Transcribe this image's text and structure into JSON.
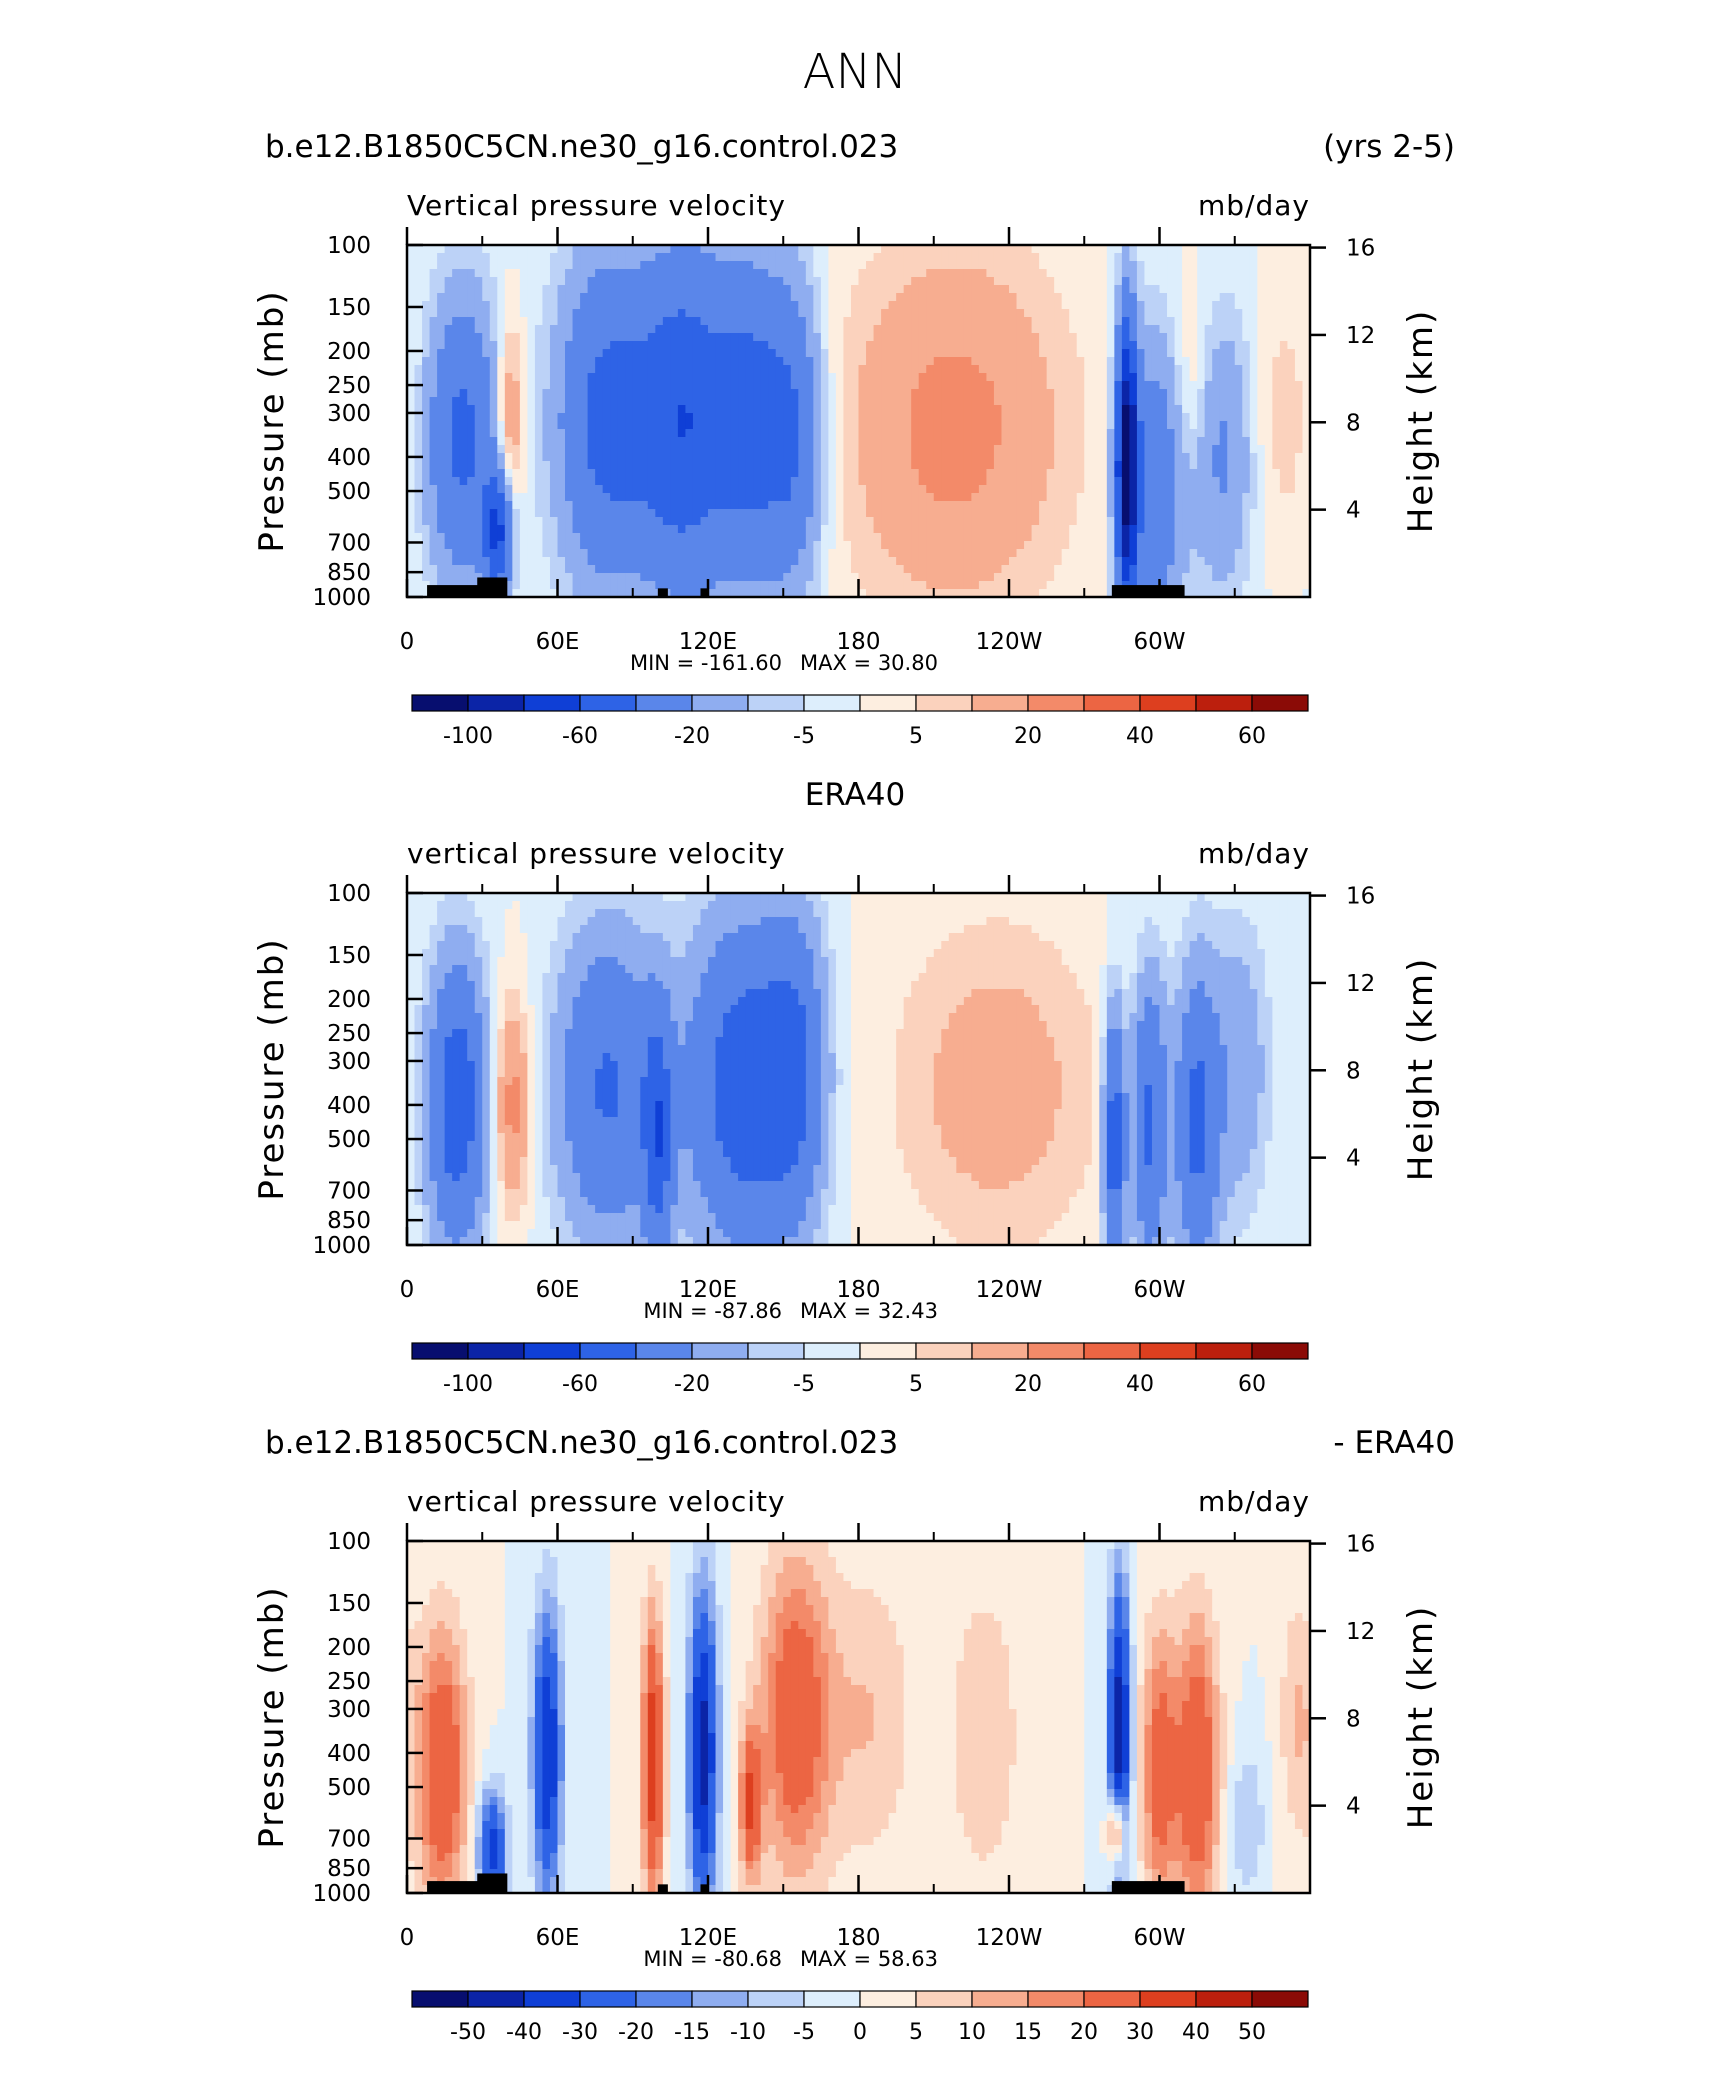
{
  "page": {
    "title": "ANN"
  },
  "chart_data": [
    {
      "type": "heatmap",
      "case_title": "b.e12.B1850C5CN.ne30_g16.control.023",
      "right_title": "(yrs 2-5)",
      "center_title": "",
      "left_string": "Vertical pressure velocity",
      "units": "mb/day",
      "ylabel": "Pressure (mb)",
      "y2label": "Height (km)",
      "x_ticks": [
        "0",
        "60E",
        "120E",
        "180",
        "120W",
        "60W"
      ],
      "y_ticks": [
        "100",
        "150",
        "200",
        "250",
        "300",
        "400",
        "500",
        "700",
        "850",
        "1000"
      ],
      "y2_ticks": [
        "16",
        "12",
        "8",
        "4"
      ],
      "ylim": [
        1000,
        100
      ],
      "xlim": [
        0,
        360
      ],
      "min_label": "MIN = -161.60",
      "max_label": "MAX = 30.80",
      "min": -161.6,
      "max": 30.8,
      "colorbar_labels": [
        "-100",
        "-60",
        "-20",
        "-5",
        "5",
        "20",
        "40",
        "60"
      ],
      "colorbar_colors": [
        "#070e6f",
        "#0b24a7",
        "#0f3fd6",
        "#2e63e6",
        "#5a86ea",
        "#8fadf0",
        "#bcd2f7",
        "#ddeefc",
        "#fdeee0",
        "#fbd2bd",
        "#f7ad90",
        "#f38a69",
        "#ec6543",
        "#dd3f1f",
        "#bc1f0d",
        "#8b0b06"
      ],
      "topography": true
    },
    {
      "type": "heatmap",
      "case_title": "",
      "right_title": "",
      "center_title": "ERA40",
      "left_string": "vertical pressure velocity",
      "units": "mb/day",
      "ylabel": "Pressure (mb)",
      "y2label": "Height (km)",
      "x_ticks": [
        "0",
        "60E",
        "120E",
        "180",
        "120W",
        "60W"
      ],
      "y_ticks": [
        "100",
        "150",
        "200",
        "250",
        "300",
        "400",
        "500",
        "700",
        "850",
        "1000"
      ],
      "y2_ticks": [
        "16",
        "12",
        "8",
        "4"
      ],
      "ylim": [
        1000,
        100
      ],
      "xlim": [
        0,
        360
      ],
      "min_label": "MIN = -87.86",
      "max_label": "MAX = 32.43",
      "min": -87.86,
      "max": 32.43,
      "colorbar_labels": [
        "-100",
        "-60",
        "-20",
        "-5",
        "5",
        "20",
        "40",
        "60"
      ],
      "colorbar_colors": [
        "#070e6f",
        "#0b24a7",
        "#0f3fd6",
        "#2e63e6",
        "#5a86ea",
        "#8fadf0",
        "#bcd2f7",
        "#ddeefc",
        "#fdeee0",
        "#fbd2bd",
        "#f7ad90",
        "#f38a69",
        "#ec6543",
        "#dd3f1f",
        "#bc1f0d",
        "#8b0b06"
      ],
      "topography": false
    },
    {
      "type": "heatmap",
      "case_title": "b.e12.B1850C5CN.ne30_g16.control.023",
      "right_title": "- ERA40",
      "center_title": "",
      "left_string": "vertical pressure velocity",
      "units": "mb/day",
      "ylabel": "Pressure (mb)",
      "y2label": "Height (km)",
      "x_ticks": [
        "0",
        "60E",
        "120E",
        "180",
        "120W",
        "60W"
      ],
      "y_ticks": [
        "100",
        "150",
        "200",
        "250",
        "300",
        "400",
        "500",
        "700",
        "850",
        "1000"
      ],
      "y2_ticks": [
        "16",
        "12",
        "8",
        "4"
      ],
      "ylim": [
        1000,
        100
      ],
      "xlim": [
        0,
        360
      ],
      "min_label": "MIN = -80.68",
      "max_label": "MAX = 58.63",
      "min": -80.68,
      "max": 58.63,
      "colorbar_labels": [
        "-50",
        "-40",
        "-30",
        "-20",
        "-15",
        "-10",
        "-5",
        "0",
        "5",
        "10",
        "15",
        "20",
        "30",
        "40",
        "50"
      ],
      "colorbar_colors": [
        "#070e6f",
        "#0b24a7",
        "#0f3fd6",
        "#2e63e6",
        "#5a86ea",
        "#8fadf0",
        "#bcd2f7",
        "#ddeefc",
        "#fdeee0",
        "#fbd2bd",
        "#f7ad90",
        "#f38a69",
        "#ec6543",
        "#dd3f1f",
        "#bc1f0d",
        "#8b0b06"
      ],
      "topography": true
    }
  ]
}
